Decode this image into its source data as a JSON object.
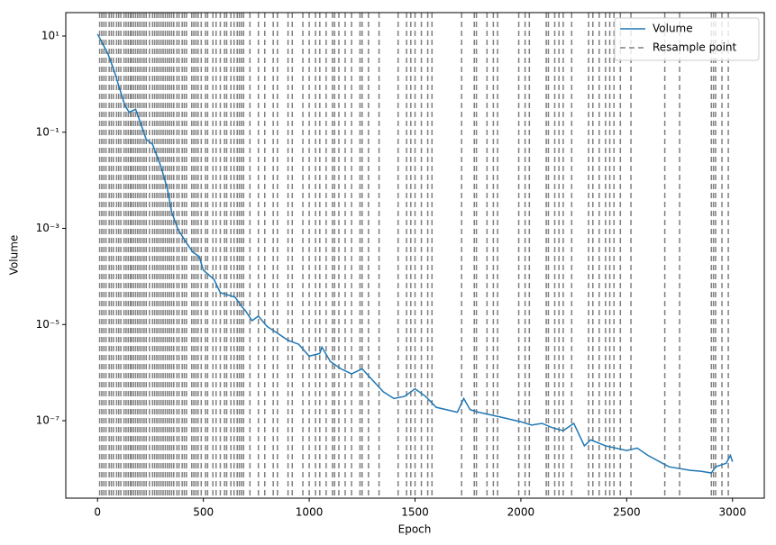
{
  "chart_data": {
    "type": "line",
    "x_label": "Epoch",
    "y_label": "Volume",
    "log_y": true,
    "legend": "upper right",
    "xlim": [
      -150,
      3150
    ],
    "xticks": [
      0,
      500,
      1000,
      1500,
      2000,
      2500,
      3000
    ],
    "ylim": [
      2.45e-09,
      30.7
    ],
    "yticks": [
      {
        "value": 10,
        "label": "10¹"
      },
      {
        "value": 0.1,
        "label": "10⁻¹"
      },
      {
        "value": 0.001,
        "label": "10⁻³"
      },
      {
        "value": 1e-05,
        "label": "10⁻⁵"
      },
      {
        "value": 1e-07,
        "label": "10⁻⁷"
      }
    ],
    "series": [
      {
        "name": "Volume",
        "color": "#1f77b4",
        "x": [
          0,
          50,
          80,
          100,
          130,
          150,
          180,
          200,
          230,
          260,
          300,
          330,
          350,
          380,
          420,
          450,
          480,
          500,
          550,
          580,
          650,
          680,
          700,
          730,
          760,
          800,
          850,
          900,
          950,
          1000,
          1050,
          1060,
          1100,
          1150,
          1200,
          1250,
          1280,
          1350,
          1400,
          1450,
          1500,
          1550,
          1600,
          1700,
          1730,
          1760,
          1800,
          1900,
          2000,
          2050,
          2100,
          2150,
          2200,
          2250,
          2300,
          2330,
          2400,
          2500,
          2550,
          2600,
          2700,
          2800,
          2850,
          2900,
          2920,
          2970,
          2990,
          3000
        ],
        "values": [
          11,
          4.2,
          1.8,
          0.93,
          0.35,
          0.26,
          0.3,
          0.17,
          0.071,
          0.056,
          0.019,
          0.0066,
          0.0022,
          0.00095,
          0.0005,
          0.00032,
          0.00026,
          0.000135,
          8.7e-05,
          4.6e-05,
          3.7e-05,
          2.4e-05,
          1.9e-05,
          1.2e-05,
          1.5e-05,
          9.2e-06,
          6.6e-06,
          4.7e-06,
          3.9e-06,
          2.2e-06,
          2.5e-06,
          3.4e-06,
          1.7e-06,
          1.2e-06,
          9.4e-07,
          1.2e-06,
          8.6e-07,
          4e-07,
          2.9e-07,
          3.2e-07,
          4.6e-07,
          3.2e-07,
          1.9e-07,
          1.5e-07,
          2.9e-07,
          1.7e-07,
          1.5e-07,
          1.2e-07,
          9.5e-08,
          8.1e-08,
          8.8e-08,
          7.1e-08,
          6.2e-08,
          8.8e-08,
          3e-08,
          4e-08,
          3e-08,
          2.4e-08,
          2.7e-08,
          1.9e-08,
          1.1e-08,
          9.3e-09,
          8.9e-09,
          8.2e-09,
          1.1e-08,
          1.3e-08,
          1.9e-08,
          1.4e-08
        ]
      },
      {
        "name": "Resample point",
        "color": "#808080",
        "x": [
          10,
          20,
          30,
          40,
          55,
          65,
          75,
          90,
          100,
          110,
          125,
          135,
          145,
          155,
          160,
          170,
          180,
          190,
          200,
          210,
          220,
          230,
          245,
          260,
          270,
          280,
          290,
          300,
          310,
          320,
          330,
          340,
          350,
          360,
          375,
          385,
          400,
          410,
          420,
          445,
          455,
          465,
          475,
          490,
          510,
          520,
          545,
          560,
          580,
          600,
          610,
          630,
          645,
          660,
          670,
          680,
          690,
          720,
          760,
          790,
          830,
          850,
          900,
          920,
          970,
          1000,
          1030,
          1050,
          1080,
          1110,
          1120,
          1140,
          1170,
          1200,
          1240,
          1250,
          1280,
          1330,
          1420,
          1460,
          1480,
          1500,
          1530,
          1560,
          1580,
          1720,
          1780,
          1790,
          1840,
          1870,
          1890,
          1990,
          2020,
          2040,
          2120,
          2130,
          2160,
          2180,
          2200,
          2240,
          2320,
          2340,
          2370,
          2400,
          2420,
          2440,
          2470,
          2520,
          2680,
          2750,
          2900,
          2910,
          2920,
          2950,
          2980
        ]
      }
    ]
  }
}
